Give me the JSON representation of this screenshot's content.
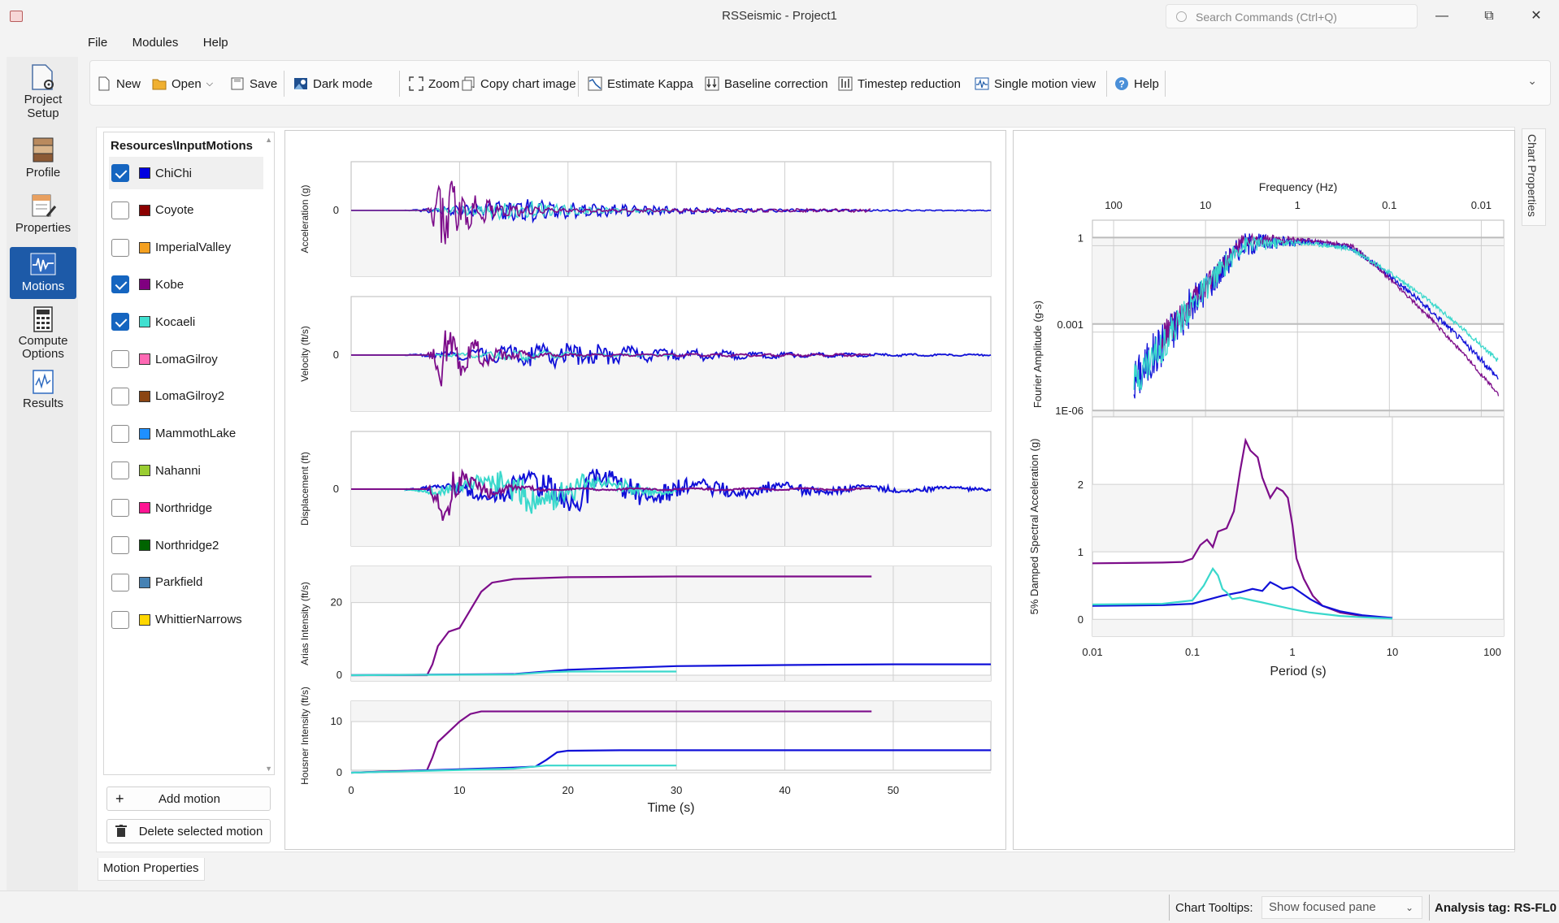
{
  "window": {
    "title": "RSSeismic - Project1",
    "search_placeholder": "Search Commands (Ctrl+Q)"
  },
  "menu": [
    "File",
    "Modules",
    "Help"
  ],
  "nav": [
    {
      "label": "Project Setup",
      "icon": "project-setup-icon"
    },
    {
      "label": "Profile",
      "icon": "profile-icon"
    },
    {
      "label": "Properties",
      "icon": "properties-icon"
    },
    {
      "label": "Motions",
      "icon": "motions-icon",
      "active": true
    },
    {
      "label": "Compute Options",
      "icon": "compute-options-icon"
    },
    {
      "label": "Results",
      "icon": "results-icon"
    }
  ],
  "toolbar": {
    "new": "New",
    "open": "Open",
    "save": "Save",
    "dark_mode": "Dark mode",
    "zoom_all": "Zoom all",
    "copy_chart": "Copy chart image",
    "estimate_kappa": "Estimate Kappa",
    "baseline": "Baseline correction",
    "timestep": "Timestep reduction",
    "single_motion": "Single motion view",
    "help": "Help"
  },
  "resources": {
    "title": "Resources\\InputMotions",
    "motions": [
      {
        "name": "ChiChi",
        "color": "#0000e0",
        "checked": true,
        "selected": true
      },
      {
        "name": "Coyote",
        "color": "#8b0000",
        "checked": false
      },
      {
        "name": "ImperialValley",
        "color": "#f4a020",
        "checked": false
      },
      {
        "name": "Kobe",
        "color": "#800080",
        "checked": true
      },
      {
        "name": "Kocaeli",
        "color": "#40e0d0",
        "checked": true
      },
      {
        "name": "LomaGilroy",
        "color": "#ff69b4",
        "checked": false
      },
      {
        "name": "LomaGilroy2",
        "color": "#8b4513",
        "checked": false
      },
      {
        "name": "MammothLake",
        "color": "#1e90ff",
        "checked": false
      },
      {
        "name": "Nahanni",
        "color": "#9acd32",
        "checked": false
      },
      {
        "name": "Northridge",
        "color": "#ff1493",
        "checked": false
      },
      {
        "name": "Northridge2",
        "color": "#006400",
        "checked": false
      },
      {
        "name": "Parkfield",
        "color": "#4682b4",
        "checked": false
      },
      {
        "name": "WhittierNarrows",
        "color": "#ffd700",
        "checked": false
      }
    ],
    "add_button": "Add motion",
    "delete_button": "Delete selected motion"
  },
  "colors": {
    "chichi": "#1010d8",
    "kobe": "#7d0d8a",
    "kocaeli": "#3ad8cc",
    "accent": "#1d5aa8"
  },
  "chart_data": [
    {
      "type": "line",
      "title": "",
      "xlabel": "Time (s)",
      "x_ticks": [
        "0",
        "10",
        "20",
        "30",
        "40",
        "50"
      ],
      "xlim": [
        0,
        59
      ],
      "panels": [
        {
          "ylabel": "Acceleration (g)",
          "y_ticks": [
            "0"
          ]
        },
        {
          "ylabel": "Velocity (ft/s)",
          "y_ticks": [
            "0"
          ]
        },
        {
          "ylabel": "Displacement (ft)",
          "y_ticks": [
            "0"
          ]
        },
        {
          "ylabel": "Arias Intensity (ft/s)",
          "y_ticks": [
            "0",
            "20"
          ],
          "series": [
            {
              "name": "Kobe",
              "x": [
                0,
                7,
                7.5,
                8,
                9,
                10,
                11,
                12,
                13,
                15,
                20,
                30,
                48
              ],
              "y": [
                0,
                0,
                3,
                8,
                12,
                13,
                18,
                23,
                25.5,
                26.5,
                27,
                27.2,
                27.2
              ]
            },
            {
              "name": "ChiChi",
              "x": [
                0,
                15,
                17,
                20,
                25,
                30,
                40,
                50,
                59
              ],
              "y": [
                0,
                0.3,
                0.8,
                1.5,
                2,
                2.5,
                2.8,
                3,
                3
              ]
            },
            {
              "name": "Kocaeli",
              "x": [
                0,
                15,
                18,
                20,
                25,
                30
              ],
              "y": [
                0,
                0.2,
                0.8,
                1.0,
                1.0,
                1.0
              ]
            }
          ]
        },
        {
          "ylabel": "Housner Intensity (ft/s)",
          "y_ticks": [
            "0",
            "10"
          ],
          "series": [
            {
              "name": "Kobe",
              "x": [
                0,
                7,
                7.5,
                8,
                9,
                10,
                11,
                12,
                20,
                30,
                48
              ],
              "y": [
                0,
                0.5,
                3,
                6,
                8,
                10,
                11.5,
                12,
                12,
                12,
                12
              ]
            },
            {
              "name": "ChiChi",
              "x": [
                0,
                15,
                17,
                18,
                19,
                20,
                25,
                30,
                40,
                50,
                59
              ],
              "y": [
                0,
                1,
                1.2,
                2.5,
                4,
                4.3,
                4.4,
                4.4,
                4.4,
                4.4,
                4.4
              ]
            },
            {
              "name": "Kocaeli",
              "x": [
                0,
                15,
                16,
                17,
                18,
                20,
                25,
                30
              ],
              "y": [
                0,
                0.8,
                1,
                1.2,
                1.4,
                1.4,
                1.4,
                1.4
              ]
            }
          ]
        }
      ]
    },
    {
      "type": "line",
      "title": "",
      "xlabel": "Frequency (Hz)",
      "ylabel": "Fourier Amplitude (g-s)",
      "x_ticks": [
        "100",
        "10",
        "1",
        "0.1",
        "0.01"
      ],
      "y_ticks": [
        "1",
        "0.001",
        "1E-06"
      ],
      "log_x": true,
      "log_y": true
    },
    {
      "type": "line",
      "title": "",
      "xlabel": "Period (s)",
      "ylabel": "5% Damped Spectral Acceleration (g)",
      "x_ticks": [
        "0.01",
        "0.1",
        "1",
        "10",
        "100"
      ],
      "y_ticks": [
        "0",
        "1",
        "2"
      ],
      "log_x": true,
      "series": [
        {
          "name": "Kobe",
          "x": [
            0.01,
            0.05,
            0.08,
            0.1,
            0.12,
            0.14,
            0.16,
            0.18,
            0.22,
            0.26,
            0.3,
            0.34,
            0.38,
            0.45,
            0.5,
            0.6,
            0.7,
            0.8,
            0.9,
            1.0,
            1.1,
            1.3,
            1.6,
            2,
            3,
            5,
            10
          ],
          "y": [
            0.83,
            0.84,
            0.85,
            0.9,
            1.1,
            1.18,
            1.07,
            1.3,
            1.35,
            1.6,
            2.2,
            2.65,
            2.5,
            2.4,
            2.1,
            1.8,
            1.95,
            1.9,
            1.8,
            1.4,
            0.9,
            0.6,
            0.35,
            0.2,
            0.1,
            0.05,
            0.02
          ]
        },
        {
          "name": "ChiChi",
          "x": [
            0.01,
            0.05,
            0.1,
            0.15,
            0.2,
            0.3,
            0.4,
            0.5,
            0.6,
            0.7,
            0.8,
            1.0,
            1.2,
            1.5,
            2,
            3,
            5,
            10
          ],
          "y": [
            0.2,
            0.21,
            0.23,
            0.3,
            0.35,
            0.4,
            0.45,
            0.42,
            0.55,
            0.5,
            0.45,
            0.48,
            0.4,
            0.3,
            0.2,
            0.12,
            0.06,
            0.02
          ]
        },
        {
          "name": "Kocaeli",
          "x": [
            0.01,
            0.05,
            0.1,
            0.13,
            0.16,
            0.18,
            0.2,
            0.22,
            0.25,
            0.3,
            0.4,
            0.5,
            0.7,
            1.0,
            1.5,
            2,
            3,
            5,
            10
          ],
          "y": [
            0.22,
            0.23,
            0.28,
            0.5,
            0.75,
            0.65,
            0.45,
            0.4,
            0.3,
            0.32,
            0.28,
            0.25,
            0.2,
            0.15,
            0.1,
            0.08,
            0.05,
            0.03,
            0.01
          ]
        }
      ]
    }
  ],
  "chart_properties_tab": "Chart Properties",
  "motion_properties_tab": "Motion Properties",
  "status": {
    "tooltips_label": "Chart Tooltips:",
    "tooltips_value": "Show focused pane",
    "analysis_tag": "Analysis tag: RS-FL0"
  }
}
